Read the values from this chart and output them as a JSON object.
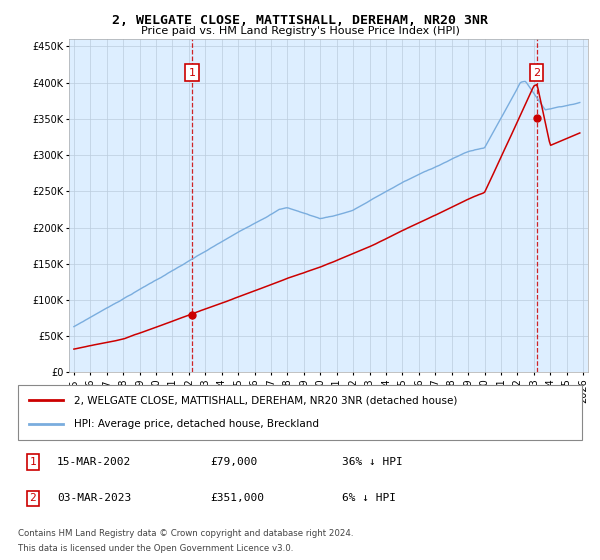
{
  "title": "2, WELGATE CLOSE, MATTISHALL, DEREHAM, NR20 3NR",
  "subtitle": "Price paid vs. HM Land Registry's House Price Index (HPI)",
  "legend_line1": "2, WELGATE CLOSE, MATTISHALL, DEREHAM, NR20 3NR (detached house)",
  "legend_line2": "HPI: Average price, detached house, Breckland",
  "annotation1_label": "1",
  "annotation1_date": "15-MAR-2002",
  "annotation1_price": "£79,000",
  "annotation1_hpi": "36% ↓ HPI",
  "annotation2_label": "2",
  "annotation2_date": "03-MAR-2023",
  "annotation2_price": "£351,000",
  "annotation2_hpi": "6% ↓ HPI",
  "footer1": "Contains HM Land Registry data © Crown copyright and database right 2024.",
  "footer2": "This data is licensed under the Open Government Licence v3.0.",
  "sale1_year": 2002.2,
  "sale1_value": 79000,
  "sale2_year": 2023.17,
  "sale2_value": 351000,
  "hpi_color": "#7aadde",
  "price_color": "#cc0000",
  "vline_color": "#cc0000",
  "ylim_max": 460000,
  "ylim_min": 0,
  "xlim_min": 1994.7,
  "xlim_max": 2026.3,
  "chart_bg": "#ddeeff",
  "background_color": "#ffffff",
  "grid_color": "#bbccdd"
}
